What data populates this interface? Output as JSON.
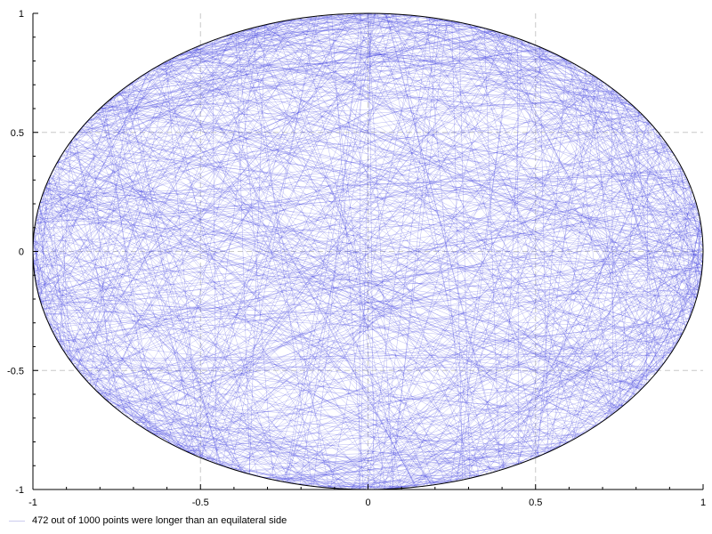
{
  "chart_data": {
    "type": "line",
    "title": "",
    "xlabel": "",
    "ylabel": "",
    "xlim": [
      -1,
      1
    ],
    "ylim": [
      -1,
      1
    ],
    "xticks": [
      -1,
      -0.5,
      0,
      0.5,
      1
    ],
    "yticks": [
      -1,
      -0.5,
      0,
      0.5,
      1
    ],
    "xtick_labels": [
      "-1",
      "-0.5",
      "0",
      "0.5",
      "1"
    ],
    "ytick_labels": [
      "-1",
      "-0.5",
      "0",
      "0.5",
      "1"
    ],
    "grid": true,
    "grid_style": "dashed",
    "circle": {
      "center": [
        0,
        0
      ],
      "radius": 1,
      "color": "#000000"
    },
    "series": [
      {
        "name": "472 out of 1000 points were longer than an equilateral side",
        "kind": "random chords of the unit circle",
        "count": 1000,
        "color": "#3333dd"
      }
    ],
    "legend": {
      "position": "bottom-left",
      "text": "472 out of 1000 points were longer than an equilateral side"
    }
  }
}
